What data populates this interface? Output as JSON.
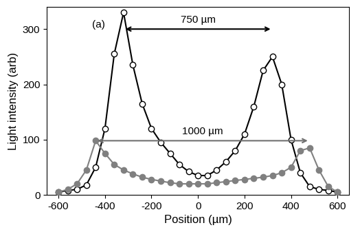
{
  "chart_data": {
    "type": "line",
    "x_label": "Position (µm)",
    "y_label": "Light intensity (arb)",
    "x": [
      -600,
      -560,
      -520,
      -480,
      -440,
      -400,
      -360,
      -320,
      -280,
      -240,
      -200,
      -160,
      -120,
      -80,
      -40,
      0,
      40,
      80,
      120,
      160,
      200,
      240,
      280,
      320,
      360,
      400,
      440,
      480,
      520,
      560,
      600
    ],
    "series": [
      {
        "color": "#000000",
        "marker": "open circle",
        "line_style": "solid",
        "values": [
          5,
          8,
          10,
          18,
          50,
          120,
          255,
          330,
          235,
          165,
          120,
          95,
          75,
          55,
          42,
          35,
          35,
          45,
          60,
          80,
          110,
          160,
          225,
          250,
          200,
          100,
          40,
          15,
          10,
          8,
          5
        ]
      },
      {
        "color": "#808080",
        "marker": "filled circle",
        "line_style": "solid",
        "values": [
          5,
          10,
          20,
          45,
          98,
          75,
          55,
          45,
          38,
          32,
          28,
          25,
          22,
          20,
          20,
          20,
          20,
          22,
          24,
          26,
          28,
          30,
          32,
          35,
          40,
          50,
          80,
          85,
          45,
          15,
          5
        ]
      }
    ],
    "annotations": [
      "(a)",
      "750 µm",
      "1000 µm"
    ],
    "xlim": [
      -650,
      650
    ],
    "xticks": [
      -600,
      -400,
      -200,
      0,
      200,
      400,
      600
    ],
    "ylim": [
      0,
      340
    ],
    "yticks": [
      0,
      100,
      200,
      300
    ],
    "grid": false
  }
}
